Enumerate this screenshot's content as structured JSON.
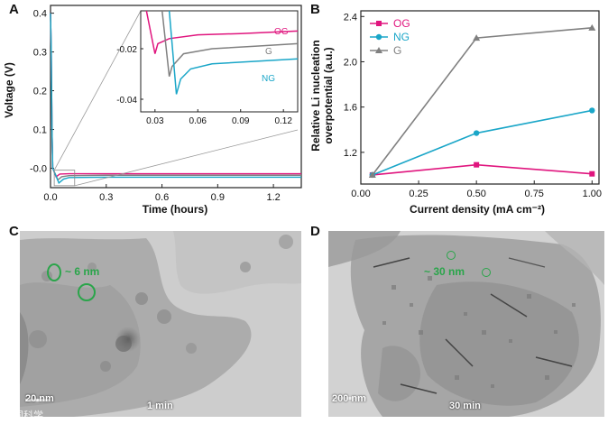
{
  "panels": {
    "a_letter": "A",
    "b_letter": "B",
    "c_letter": "C",
    "d_letter": "D"
  },
  "chart_data": [
    {
      "type": "line",
      "panel": "A",
      "xlabel": "Time (hours)",
      "ylabel": "Voltage (V)",
      "xlim": [
        0,
        1.35
      ],
      "ylim": [
        -0.05,
        0.42
      ],
      "xticks": [
        "0.0",
        "0.3",
        "0.6",
        "0.9",
        "1.2"
      ],
      "xtick_values": [
        0,
        0.3,
        0.6,
        0.9,
        1.2
      ],
      "yticks": [
        "-0.0",
        "0.1",
        "0.2",
        "0.3",
        "0.4"
      ],
      "ytick_values": [
        0,
        0.1,
        0.2,
        0.3,
        0.4
      ],
      "series": [
        {
          "name": "OG",
          "color": "#e0157e",
          "x": [
            0,
            0.004,
            0.008,
            0.012,
            0.03,
            0.05,
            0.1,
            0.3,
            0.6,
            0.9,
            1.2,
            1.35
          ],
          "y": [
            0.4,
            0.3,
            0.1,
            0.0,
            -0.022,
            -0.015,
            -0.014,
            -0.014,
            -0.014,
            -0.014,
            -0.014,
            -0.014
          ]
        },
        {
          "name": "G",
          "color": "#808080",
          "x": [
            0,
            0.004,
            0.008,
            0.012,
            0.04,
            0.06,
            0.1,
            0.3,
            0.6,
            0.9,
            1.2,
            1.35
          ],
          "y": [
            0.4,
            0.3,
            0.1,
            0.0,
            -0.03,
            -0.022,
            -0.019,
            -0.018,
            -0.018,
            -0.018,
            -0.018,
            -0.018
          ]
        },
        {
          "name": "NG",
          "color": "#1aa6c8",
          "x": [
            0,
            0.004,
            0.008,
            0.012,
            0.045,
            0.07,
            0.1,
            0.3,
            0.6,
            0.9,
            1.2,
            1.35
          ],
          "y": [
            0.4,
            0.3,
            0.1,
            0.0,
            -0.038,
            -0.028,
            -0.024,
            -0.023,
            -0.023,
            -0.023,
            -0.023,
            -0.023
          ]
        }
      ],
      "inset": {
        "xlim": [
          0.02,
          0.13
        ],
        "ylim": [
          -0.045,
          -0.005
        ],
        "xticks": [
          "0.03",
          "0.06",
          "0.09",
          "0.12"
        ],
        "xtick_values": [
          0.03,
          0.06,
          0.09,
          0.12
        ],
        "yticks": [
          "-0.02",
          "-0.04"
        ],
        "ytick_values": [
          -0.02,
          -0.04
        ],
        "series": [
          {
            "name": "OG",
            "color": "#e0157e",
            "x": [
              0.024,
              0.03,
              0.032,
              0.04,
              0.06,
              0.09,
              0.13
            ],
            "y": [
              -0.005,
              -0.022,
              -0.018,
              -0.016,
              -0.0145,
              -0.014,
              -0.013
            ]
          },
          {
            "name": "G",
            "color": "#808080",
            "x": [
              0.035,
              0.04,
              0.042,
              0.05,
              0.07,
              0.1,
              0.13
            ],
            "y": [
              -0.005,
              -0.031,
              -0.027,
              -0.022,
              -0.02,
              -0.019,
              -0.018
            ]
          },
          {
            "name": "NG",
            "color": "#1aa6c8",
            "x": [
              0.04,
              0.045,
              0.048,
              0.055,
              0.07,
              0.1,
              0.13
            ],
            "y": [
              -0.005,
              -0.038,
              -0.032,
              -0.028,
              -0.026,
              -0.025,
              -0.024
            ]
          }
        ],
        "labels": [
          "OG",
          "G",
          "NG"
        ]
      }
    },
    {
      "type": "line",
      "panel": "B",
      "xlabel": "Current density (mA cm⁻²)",
      "ylabel": "Relative Li nucleation overpotential (a.u.)",
      "ylabel_lines": [
        "Relative Li nucleation",
        "overpotential (a.u.)"
      ],
      "xlim": [
        0,
        1.03
      ],
      "ylim": [
        0.92,
        2.45
      ],
      "xticks": [
        "0.00",
        "0.25",
        "0.50",
        "0.75",
        "1.00"
      ],
      "xtick_values": [
        0,
        0.25,
        0.5,
        0.75,
        1.0
      ],
      "yticks": [
        "1.2",
        "1.6",
        "2.0",
        "2.4"
      ],
      "ytick_values": [
        1.2,
        1.6,
        2.0,
        2.4
      ],
      "legend_position": "top-left",
      "series": [
        {
          "name": "OG",
          "color": "#e0157e",
          "marker": "square",
          "x": [
            0.05,
            0.5,
            1.0
          ],
          "y": [
            1.0,
            1.09,
            1.01
          ]
        },
        {
          "name": "NG",
          "color": "#1aa6c8",
          "marker": "circle",
          "x": [
            0.05,
            0.5,
            1.0
          ],
          "y": [
            1.0,
            1.37,
            1.57
          ]
        },
        {
          "name": "G",
          "color": "#808080",
          "marker": "triangle",
          "x": [
            0.05,
            0.5,
            1.0
          ],
          "y": [
            1.0,
            2.21,
            2.3
          ]
        }
      ]
    }
  ],
  "micrographs": {
    "c": {
      "scale": "20 nm",
      "time": "1 min",
      "annotation": "~ 6 nm"
    },
    "d": {
      "scale": "200 nm",
      "time": "30 min",
      "annotation": "~ 30 nm"
    }
  },
  "watermark": " 中国科学"
}
